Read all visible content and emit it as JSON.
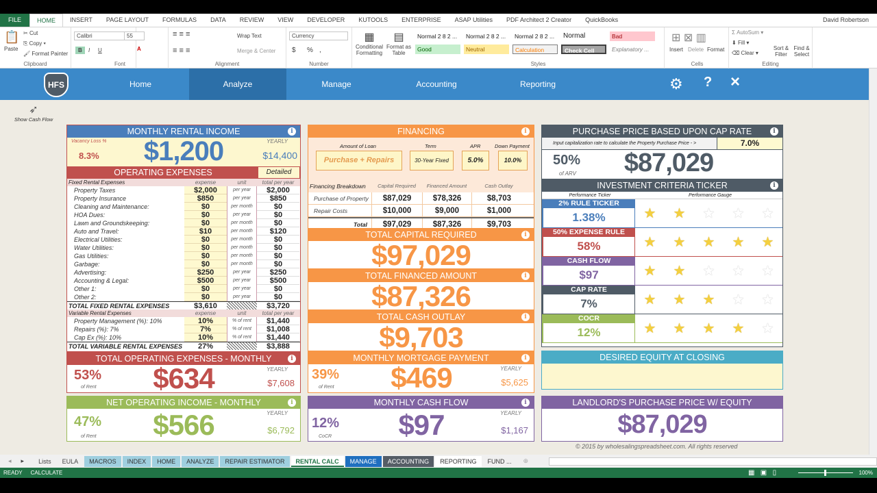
{
  "ribbon_tabs": [
    "FILE",
    "HOME",
    "INSERT",
    "PAGE LAYOUT",
    "FORMULAS",
    "DATA",
    "REVIEW",
    "VIEW",
    "DEVELOPER",
    "KUTOOLS",
    "ENTERPRISE",
    "ASAP Utilities",
    "PDF Architect 2 Creator",
    "QuickBooks"
  ],
  "user": "David Robertson",
  "ribbon": {
    "clipboard": {
      "paste": "Paste",
      "cut": "Cut",
      "copy": "Copy",
      "format_painter": "Format Painter",
      "label": "Clipboard"
    },
    "font": {
      "name": "Calibri",
      "size": "55",
      "bold": "B",
      "italic": "I",
      "underline": "U",
      "label": "Font"
    },
    "alignment": {
      "wrap": "Wrap Text",
      "merge": "Merge & Center",
      "label": "Alignment"
    },
    "number": {
      "format": "Currency",
      "dollar": "$",
      "percent": "%",
      "comma": ",",
      "label": "Number"
    },
    "conditional": "Conditional Formatting",
    "format_table": "Format as Table",
    "styles": {
      "items": [
        "Normal 2 8 2 ...",
        "Normal 2 8 2 ...",
        "Normal 2 8 2 ...",
        "Normal",
        "Bad",
        "Good",
        "Neutral",
        "Calculation",
        "Check Cell",
        "Explanatory ..."
      ],
      "label": "Styles"
    },
    "cells": {
      "insert": "Insert",
      "delete": "Delete",
      "format": "Format",
      "label": "Cells"
    },
    "editing": {
      "autosum": "AutoSum",
      "fill": "Fill",
      "clear": "Clear",
      "sort": "Sort & Filter",
      "find": "Find & Select",
      "label": "Editing"
    }
  },
  "nav": {
    "logo": "HFS",
    "items": [
      "Home",
      "Analyze",
      "Manage",
      "Accounting",
      "Reporting"
    ],
    "active": "Analyze",
    "settings": "gear-icon",
    "help": "?",
    "close": "×"
  },
  "show_cash_flow": "Show Cash Flow",
  "rental_income": {
    "title": "MONTHLY RENTAL INCOME",
    "vacancy_label": "Vacancy Loss %",
    "vacancy": "8.3%",
    "monthly": "$1,200",
    "yearly_label": "YEARLY",
    "yearly": "$14,400"
  },
  "operating": {
    "title": "OPERATING EXPENSES",
    "mode": "Detailed",
    "fixed_header": [
      "Fixed Rental Expenses",
      "expense",
      "unit",
      "total per year"
    ],
    "fixed": [
      [
        "Property Taxes",
        "$2,000",
        "per year",
        "$2,000"
      ],
      [
        "Property Insurance",
        "$850",
        "per year",
        "$850"
      ],
      [
        "Cleaning and Maintenance:",
        "$0",
        "per month",
        "$0"
      ],
      [
        "HOA Dues:",
        "$0",
        "per year",
        "$0"
      ],
      [
        "Lawn and Groundskeeping:",
        "$0",
        "per month",
        "$0"
      ],
      [
        "Auto and Travel:",
        "$10",
        "per month",
        "$120"
      ],
      [
        "Electrical Utilities:",
        "$0",
        "per month",
        "$0"
      ],
      [
        "Water Utilities:",
        "$0",
        "per month",
        "$0"
      ],
      [
        "Gas Utilities:",
        "$0",
        "per month",
        "$0"
      ],
      [
        "Garbage:",
        "$0",
        "per month",
        "$0"
      ],
      [
        "Advertising:",
        "$250",
        "per year",
        "$250"
      ],
      [
        "Accounting & Legal:",
        "$500",
        "per year",
        "$500"
      ],
      [
        "Other 1:",
        "$0",
        "per year",
        "$0"
      ],
      [
        "Other 2:",
        "$0",
        "per year",
        "$0"
      ]
    ],
    "fixed_total": [
      "TOTAL FIXED RENTAL EXPENSES",
      "$3,610",
      "$3,720"
    ],
    "variable_header": [
      "Variable Rental Expenses",
      "expense",
      "unit",
      "total per year"
    ],
    "variable": [
      [
        "Property Management (%): 10%",
        "10%",
        "% of rent",
        "$1,440"
      ],
      [
        "Repairs (%): 7%",
        "7%",
        "% of rent",
        "$1,008"
      ],
      [
        "Cap Ex (%): 10%",
        "10%",
        "% of rent",
        "$1,440"
      ]
    ],
    "variable_total": [
      "TOTAL VARIABLE RENTAL EXPENSES",
      "27%",
      "$3,888"
    ]
  },
  "total_opex": {
    "title": "TOTAL OPERATING EXPENSES - MONTHLY",
    "pct": "53%",
    "pct_label": "of Rent",
    "value": "$634",
    "yearly_label": "YEARLY",
    "yearly": "$7,608"
  },
  "noi": {
    "title": "NET OPERATING INCOME - MONTHLY",
    "pct": "47%",
    "pct_label": "of Rent",
    "value": "$566",
    "yearly_label": "YEARLY",
    "yearly": "$6,792"
  },
  "financing": {
    "title": "FINANCING",
    "loan_label": "Amount of Loan",
    "loan": "Purchase + Repairs",
    "term_label": "Term",
    "term": "30-Year Fixed",
    "apr_label": "APR",
    "apr": "5.0%",
    "down_label": "Down Payment",
    "down": "10.0%",
    "breakdown_header": [
      "Financing Breakdown",
      "Capital Required",
      "Financed Amount",
      "Cash Outlay"
    ],
    "rows": [
      [
        "Purchase of Property",
        "$87,029",
        "$78,326",
        "$8,703"
      ],
      [
        "Repair Costs",
        "$10,000",
        "$9,000",
        "$1,000"
      ],
      [
        "Total",
        "$97,029",
        "$87,326",
        "$9,703"
      ]
    ]
  },
  "capital_required": {
    "title": "TOTAL CAPITAL REQUIRED",
    "value": "$97,029"
  },
  "financed_amount": {
    "title": "TOTAL FINANCED AMOUNT",
    "value": "$87,326"
  },
  "cash_outlay": {
    "title": "TOTAL CASH OUTLAY",
    "value": "$9,703"
  },
  "mortgage": {
    "title": "MONTHLY MORTGAGE PAYMENT",
    "pct": "39%",
    "pct_label": "of Rent",
    "value": "$469",
    "yearly_label": "YEARLY",
    "yearly": "$5,625"
  },
  "cash_flow": {
    "title": "MONTHLY CASH FLOW",
    "pct": "12%",
    "pct_label": "CoCR",
    "value": "$97",
    "yearly_label": "YEARLY",
    "yearly": "$1,167"
  },
  "cap_rate_price": {
    "title": "PURCHASE PRICE BASED UPON CAP RATE",
    "prompt": "Input capitalization rate to calculate the Property Purchase Price - >",
    "rate": "7.0%",
    "arv_pct": "50%",
    "arv_label": "of ARV",
    "value": "$87,029"
  },
  "ticker": {
    "title": "INVESTMENT CRITERIA TICKER",
    "col1": "Performance Ticker",
    "col2": "Performance Gauge",
    "items": [
      {
        "label": "2% RULE TICKER",
        "value": "1.38%",
        "stars": 2,
        "color": "#4a7ebb"
      },
      {
        "label": "50% EXPENSE RULE",
        "value": "58%",
        "stars": 5,
        "color": "#c0504d"
      },
      {
        "label": "CASH FLOW",
        "value": "$97",
        "stars": 2,
        "color": "#8064a2"
      },
      {
        "label": "CAP RATE",
        "value": "7%",
        "stars": 3,
        "color": "#4f5b66"
      },
      {
        "label": "COCR",
        "value": "12%",
        "stars": 4,
        "color": "#9bbb59"
      }
    ]
  },
  "desired_equity": {
    "title": "DESIRED EQUITY AT CLOSING"
  },
  "landlord_price": {
    "title": "LANDLORD'S PURCHASE PRICE W/ EQUITY",
    "value": "$87,029"
  },
  "copyright": "© 2015 by wholesalingspreadsheet.com. All rights reserved",
  "sheet_tabs": [
    {
      "n": "Lists",
      "c": "#f0f0f0",
      "t": "#444"
    },
    {
      "n": "EULA",
      "c": "#f0f0f0",
      "t": "#444"
    },
    {
      "n": "MACROS",
      "c": "#9fcfdf",
      "t": "#333"
    },
    {
      "n": "INDEX",
      "c": "#9fcfdf",
      "t": "#333"
    },
    {
      "n": "HOME",
      "c": "#9fcfdf",
      "t": "#333"
    },
    {
      "n": "ANALYZE",
      "c": "#9fcfdf",
      "t": "#333"
    },
    {
      "n": "REPAIR ESTIMATOR",
      "c": "#9fcfdf",
      "t": "#333"
    },
    {
      "n": "RENTAL CALC",
      "c": "#fff",
      "t": "#217346",
      "active": true
    },
    {
      "n": "MANAGE",
      "c": "#1f6fbf",
      "t": "#fff"
    },
    {
      "n": "ACCOUNTING",
      "c": "#555d66",
      "t": "#fff"
    },
    {
      "n": "REPORTING",
      "c": "#fff",
      "t": "#333"
    },
    {
      "n": "FUND ...",
      "c": "#f0f0f0",
      "t": "#333"
    }
  ],
  "status": {
    "ready": "READY",
    "calculate": "CALCULATE",
    "zoom": "100%"
  },
  "colors": {
    "excel_green": "#217346",
    "nav_blue": "#3b89c9",
    "blue": "#4a7ebb",
    "red": "#c0504d",
    "orange": "#f79646",
    "green": "#9bbb59",
    "purple": "#8064a2",
    "slate": "#4f5b66",
    "teal": "#4bacc6"
  }
}
